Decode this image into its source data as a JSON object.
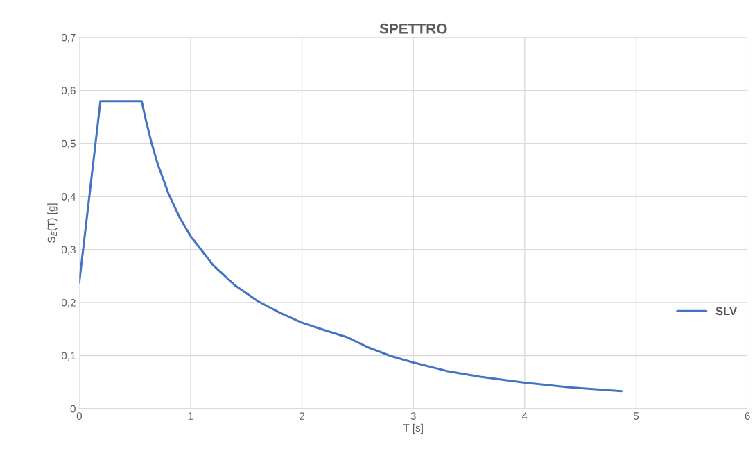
{
  "chart_data": {
    "type": "line",
    "title": "SPETTRO",
    "xlabel": "T [s]",
    "ylabel": "S$_{E}$(T) [g]",
    "xlim": [
      0,
      6
    ],
    "xticks": [
      0,
      1,
      2,
      3,
      4,
      5,
      6
    ],
    "ylim": [
      0,
      0.7
    ],
    "yticks": [
      0,
      {
        "value": 0.1,
        "label": "0,1"
      },
      {
        "value": 0.2,
        "label": "0,2"
      },
      {
        "value": 0.3,
        "label": "0,3"
      },
      {
        "value": 0.4,
        "label": "0,4"
      },
      {
        "value": 0.5,
        "label": "0,5"
      },
      {
        "value": 0.6,
        "label": "0,6"
      },
      {
        "value": 0.7,
        "label": "0,7"
      }
    ],
    "grid": true,
    "legend": "right",
    "marker": "none",
    "line_style": "solid",
    "series": [
      {
        "name": "SLV",
        "color": "#4472c4",
        "x": [
          0,
          0.19,
          0.56,
          0.6,
          0.65,
          0.7,
          0.8,
          0.9,
          1.0,
          1.2,
          1.4,
          1.6,
          1.8,
          2.0,
          2.2,
          2.4,
          2.6,
          2.8,
          3.0,
          3.3,
          3.6,
          4.0,
          4.4,
          4.87
        ],
        "values": [
          0.238,
          0.58,
          0.58,
          0.542,
          0.5,
          0.464,
          0.406,
          0.361,
          0.325,
          0.271,
          0.232,
          0.203,
          0.181,
          0.162,
          0.148,
          0.135,
          0.115,
          0.099,
          0.087,
          0.071,
          0.06,
          0.049,
          0.04,
          0.033
        ]
      }
    ]
  }
}
